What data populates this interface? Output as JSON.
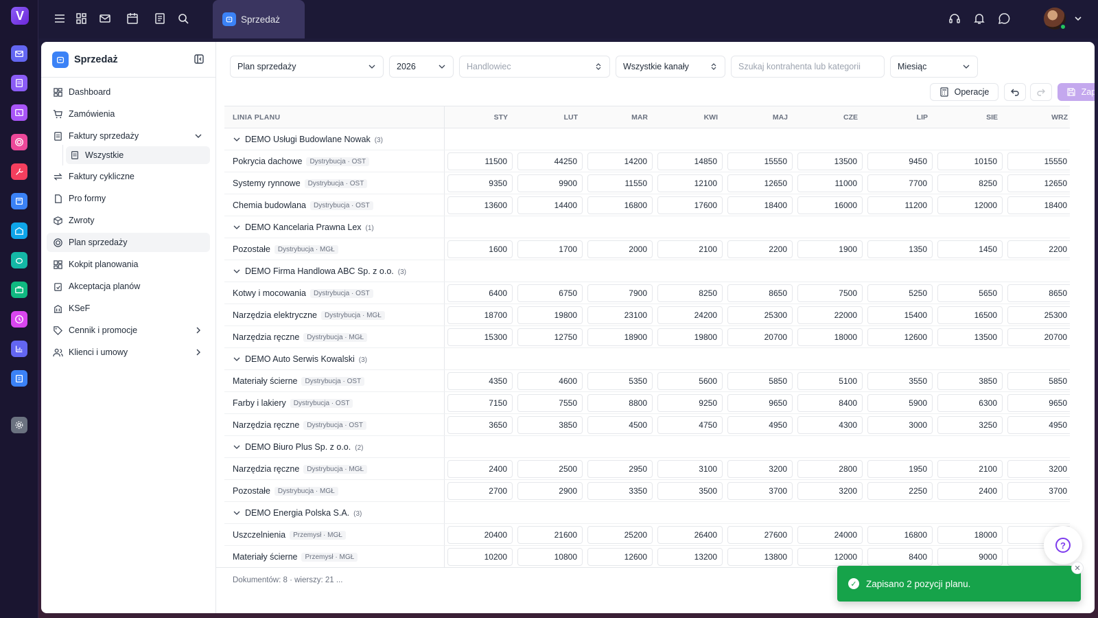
{
  "app": {
    "logo_letter": "V"
  },
  "topbar": {
    "active_tab": "Sprzedaż"
  },
  "sidebar": {
    "title": "Sprzedaż",
    "items": [
      {
        "label": "Dashboard",
        "icon": "dashboard-icon"
      },
      {
        "label": "Zamówienia",
        "icon": "cart-icon"
      },
      {
        "label": "Faktury sprzedaży",
        "icon": "invoice-icon",
        "expanded": true
      },
      {
        "label": "Faktury cykliczne",
        "icon": "repeat-icon"
      },
      {
        "label": "Pro formy",
        "icon": "document-icon"
      },
      {
        "label": "Zwroty",
        "icon": "package-return-icon"
      },
      {
        "label": "Plan sprzedaży",
        "icon": "target-icon",
        "active": true
      },
      {
        "label": "Kokpit planowania",
        "icon": "grid-icon"
      },
      {
        "label": "Akceptacja planów",
        "icon": "clipboard-check-icon"
      },
      {
        "label": "KSeF",
        "icon": "building-icon"
      },
      {
        "label": "Cennik i promocje",
        "icon": "tag-icon"
      },
      {
        "label": "Klienci i umowy",
        "icon": "users-icon"
      }
    ],
    "sub_item": "Wszystkie"
  },
  "filters": {
    "plan": "Plan sprzedaży",
    "year": "2026",
    "salesperson_placeholder": "Handlowiec",
    "channel": "Wszystkie kanały",
    "search_placeholder": "Szukaj kontrahenta lub kategorii",
    "period": "Miesiąc"
  },
  "toolbar": {
    "operations_label": "Operacje",
    "save_label": "Zapisz"
  },
  "table": {
    "first_col": "LINIA PLANU",
    "months": [
      "STY",
      "LUT",
      "MAR",
      "KWI",
      "MAJ",
      "CZE",
      "LIP",
      "SIE",
      "WRZ"
    ],
    "rows": [
      {
        "group": "DEMO Usługi Budowlane Nowak",
        "count": "(3)"
      },
      {
        "name": "Pokrycia dachowe",
        "tag": "Dystrybucja · OST",
        "values": [
          "11500",
          "44250",
          "14200",
          "14850",
          "15550",
          "13500",
          "9450",
          "10150",
          "15550"
        ]
      },
      {
        "name": "Systemy rynnowe",
        "tag": "Dystrybucja · OST",
        "values": [
          "9350",
          "9900",
          "11550",
          "12100",
          "12650",
          "11000",
          "7700",
          "8250",
          "12650"
        ]
      },
      {
        "name": "Chemia budowlana",
        "tag": "Dystrybucja · OST",
        "values": [
          "13600",
          "14400",
          "16800",
          "17600",
          "18400",
          "16000",
          "11200",
          "12000",
          "18400"
        ]
      },
      {
        "group": "DEMO Kancelaria Prawna Lex",
        "count": "(1)"
      },
      {
        "name": "Pozostałe",
        "tag": "Dystrybucja · MGŁ",
        "values": [
          "1600",
          "1700",
          "2000",
          "2100",
          "2200",
          "1900",
          "1350",
          "1450",
          "2200"
        ]
      },
      {
        "group": "DEMO Firma Handlowa ABC Sp. z o.o.",
        "count": "(3)"
      },
      {
        "name": "Kotwy i mocowania",
        "tag": "Dystrybucja · OST",
        "values": [
          "6400",
          "6750",
          "7900",
          "8250",
          "8650",
          "7500",
          "5250",
          "5650",
          "8650"
        ]
      },
      {
        "name": "Narzędzia elektryczne",
        "tag": "Dystrybucja · MGŁ",
        "values": [
          "18700",
          "19800",
          "23100",
          "24200",
          "25300",
          "22000",
          "15400",
          "16500",
          "25300"
        ]
      },
      {
        "name": "Narzędzia ręczne",
        "tag": "Dystrybucja · MGŁ",
        "values": [
          "15300",
          "12750",
          "18900",
          "19800",
          "20700",
          "18000",
          "12600",
          "13500",
          "20700"
        ]
      },
      {
        "group": "DEMO Auto Serwis Kowalski",
        "count": "(3)"
      },
      {
        "name": "Materiały ścierne",
        "tag": "Dystrybucja · OST",
        "values": [
          "4350",
          "4600",
          "5350",
          "5600",
          "5850",
          "5100",
          "3550",
          "3850",
          "5850"
        ]
      },
      {
        "name": "Farby i lakiery",
        "tag": "Dystrybucja · OST",
        "values": [
          "7150",
          "7550",
          "8800",
          "9250",
          "9650",
          "8400",
          "5900",
          "6300",
          "9650"
        ]
      },
      {
        "name": "Narzędzia ręczne",
        "tag": "Dystrybucja · OST",
        "values": [
          "3650",
          "3850",
          "4500",
          "4750",
          "4950",
          "4300",
          "3000",
          "3250",
          "4950"
        ]
      },
      {
        "group": "DEMO Biuro Plus Sp. z o.o.",
        "count": "(2)"
      },
      {
        "name": "Narzędzia ręczne",
        "tag": "Dystrybucja · MGŁ",
        "values": [
          "2400",
          "2500",
          "2950",
          "3100",
          "3200",
          "2800",
          "1950",
          "2100",
          "3200"
        ]
      },
      {
        "name": "Pozostałe",
        "tag": "Dystrybucja · MGŁ",
        "values": [
          "2700",
          "2900",
          "3350",
          "3500",
          "3700",
          "3200",
          "2250",
          "2400",
          "3700"
        ]
      },
      {
        "group": "DEMO Energia Polska S.A.",
        "count": "(3)"
      },
      {
        "name": "Uszczelnienia",
        "tag": "Przemysł · MGŁ",
        "values": [
          "20400",
          "21600",
          "25200",
          "26400",
          "27600",
          "24000",
          "16800",
          "18000",
          ""
        ]
      },
      {
        "name": "Materiały ścierne",
        "tag": "Przemysł · MGŁ",
        "values": [
          "10200",
          "10800",
          "12600",
          "13200",
          "13800",
          "12000",
          "8400",
          "9000",
          ""
        ]
      }
    ]
  },
  "footer": {
    "summary": "Dokumentów: 8 · wierszy: 21 ..."
  },
  "toast": {
    "message": "Zapisano 2 pozycji planu."
  },
  "colors": {
    "accent": "#7c3aed",
    "save_button": "#c4a8ee",
    "toast": "#16a34a",
    "rail_bg": "#1a1530"
  }
}
